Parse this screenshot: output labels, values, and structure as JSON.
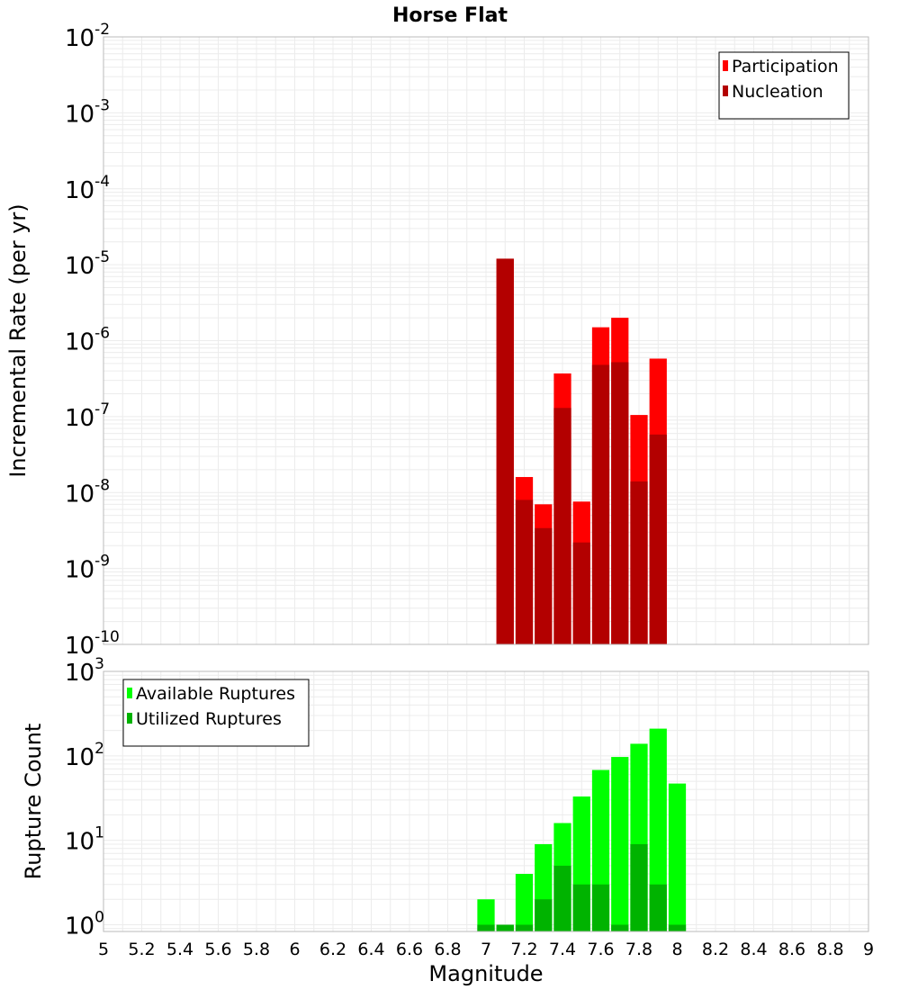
{
  "title": "Horse Flat",
  "chart_data": [
    {
      "type": "bar",
      "name": "rate-panel",
      "ylabel": "Incremental Rate (per yr)",
      "yscale": "log",
      "ylim_exp": [
        -10,
        -2
      ],
      "ytick_exponents": [
        "-10",
        "-9",
        "-8",
        "-7",
        "-6",
        "-5",
        "-4",
        "-3",
        "-2"
      ],
      "grid": true,
      "legend_placement": "top-right",
      "bin_width": 0.1,
      "series": [
        {
          "name": "Participation",
          "color": "#ff0000",
          "x": [
            7.1,
            7.2,
            7.3,
            7.4,
            7.5,
            7.6,
            7.7,
            7.8,
            7.9
          ],
          "values": [
            1.2e-05,
            1.6e-08,
            7e-09,
            3.7e-07,
            7.6e-09,
            1.5e-06,
            2e-06,
            1.05e-07,
            5.8e-07
          ]
        },
        {
          "name": "Nucleation",
          "color": "#b30000",
          "x": [
            7.1,
            7.2,
            7.3,
            7.4,
            7.5,
            7.6,
            7.7,
            7.8,
            7.9
          ],
          "values": [
            1.2e-05,
            8e-09,
            3.4e-09,
            1.3e-07,
            2.2e-09,
            4.8e-07,
            5.2e-07,
            1.4e-08,
            5.8e-08
          ]
        }
      ]
    },
    {
      "type": "bar",
      "name": "count-panel",
      "ylabel": "Rupture Count",
      "xlabel": "Magnitude",
      "yscale": "log",
      "ylim_exp": [
        -0.08,
        3
      ],
      "ytick_exponents": [
        "0",
        "1",
        "2",
        "3"
      ],
      "grid": true,
      "legend_placement": "top-left",
      "bin_width": 0.1,
      "series": [
        {
          "name": "Available Ruptures",
          "color": "#00ff00",
          "x": [
            7.0,
            7.1,
            7.2,
            7.3,
            7.4,
            7.5,
            7.6,
            7.7,
            7.8,
            7.9,
            8.0
          ],
          "values": [
            2,
            1,
            4,
            9,
            16,
            33,
            68,
            97,
            139,
            210,
            47
          ]
        },
        {
          "name": "Utilized Ruptures",
          "color": "#00b300",
          "x": [
            7.0,
            7.1,
            7.2,
            7.3,
            7.4,
            7.5,
            7.6,
            7.7,
            7.8,
            7.9,
            8.0
          ],
          "values": [
            1,
            1,
            1,
            2,
            5,
            3,
            3,
            1,
            9,
            3,
            1
          ]
        }
      ]
    }
  ],
  "xaxis": {
    "range": [
      5,
      9
    ],
    "tick_labels": [
      "5",
      "5.2",
      "5.4",
      "5.6",
      "5.8",
      "6",
      "6.2",
      "6.4",
      "6.6",
      "6.8",
      "7",
      "7.2",
      "7.4",
      "7.6",
      "7.8",
      "8",
      "8.2",
      "8.4",
      "8.6",
      "8.8",
      "9"
    ]
  },
  "colors": {
    "grid": "#ececec",
    "frame": "#bbbbbb"
  }
}
